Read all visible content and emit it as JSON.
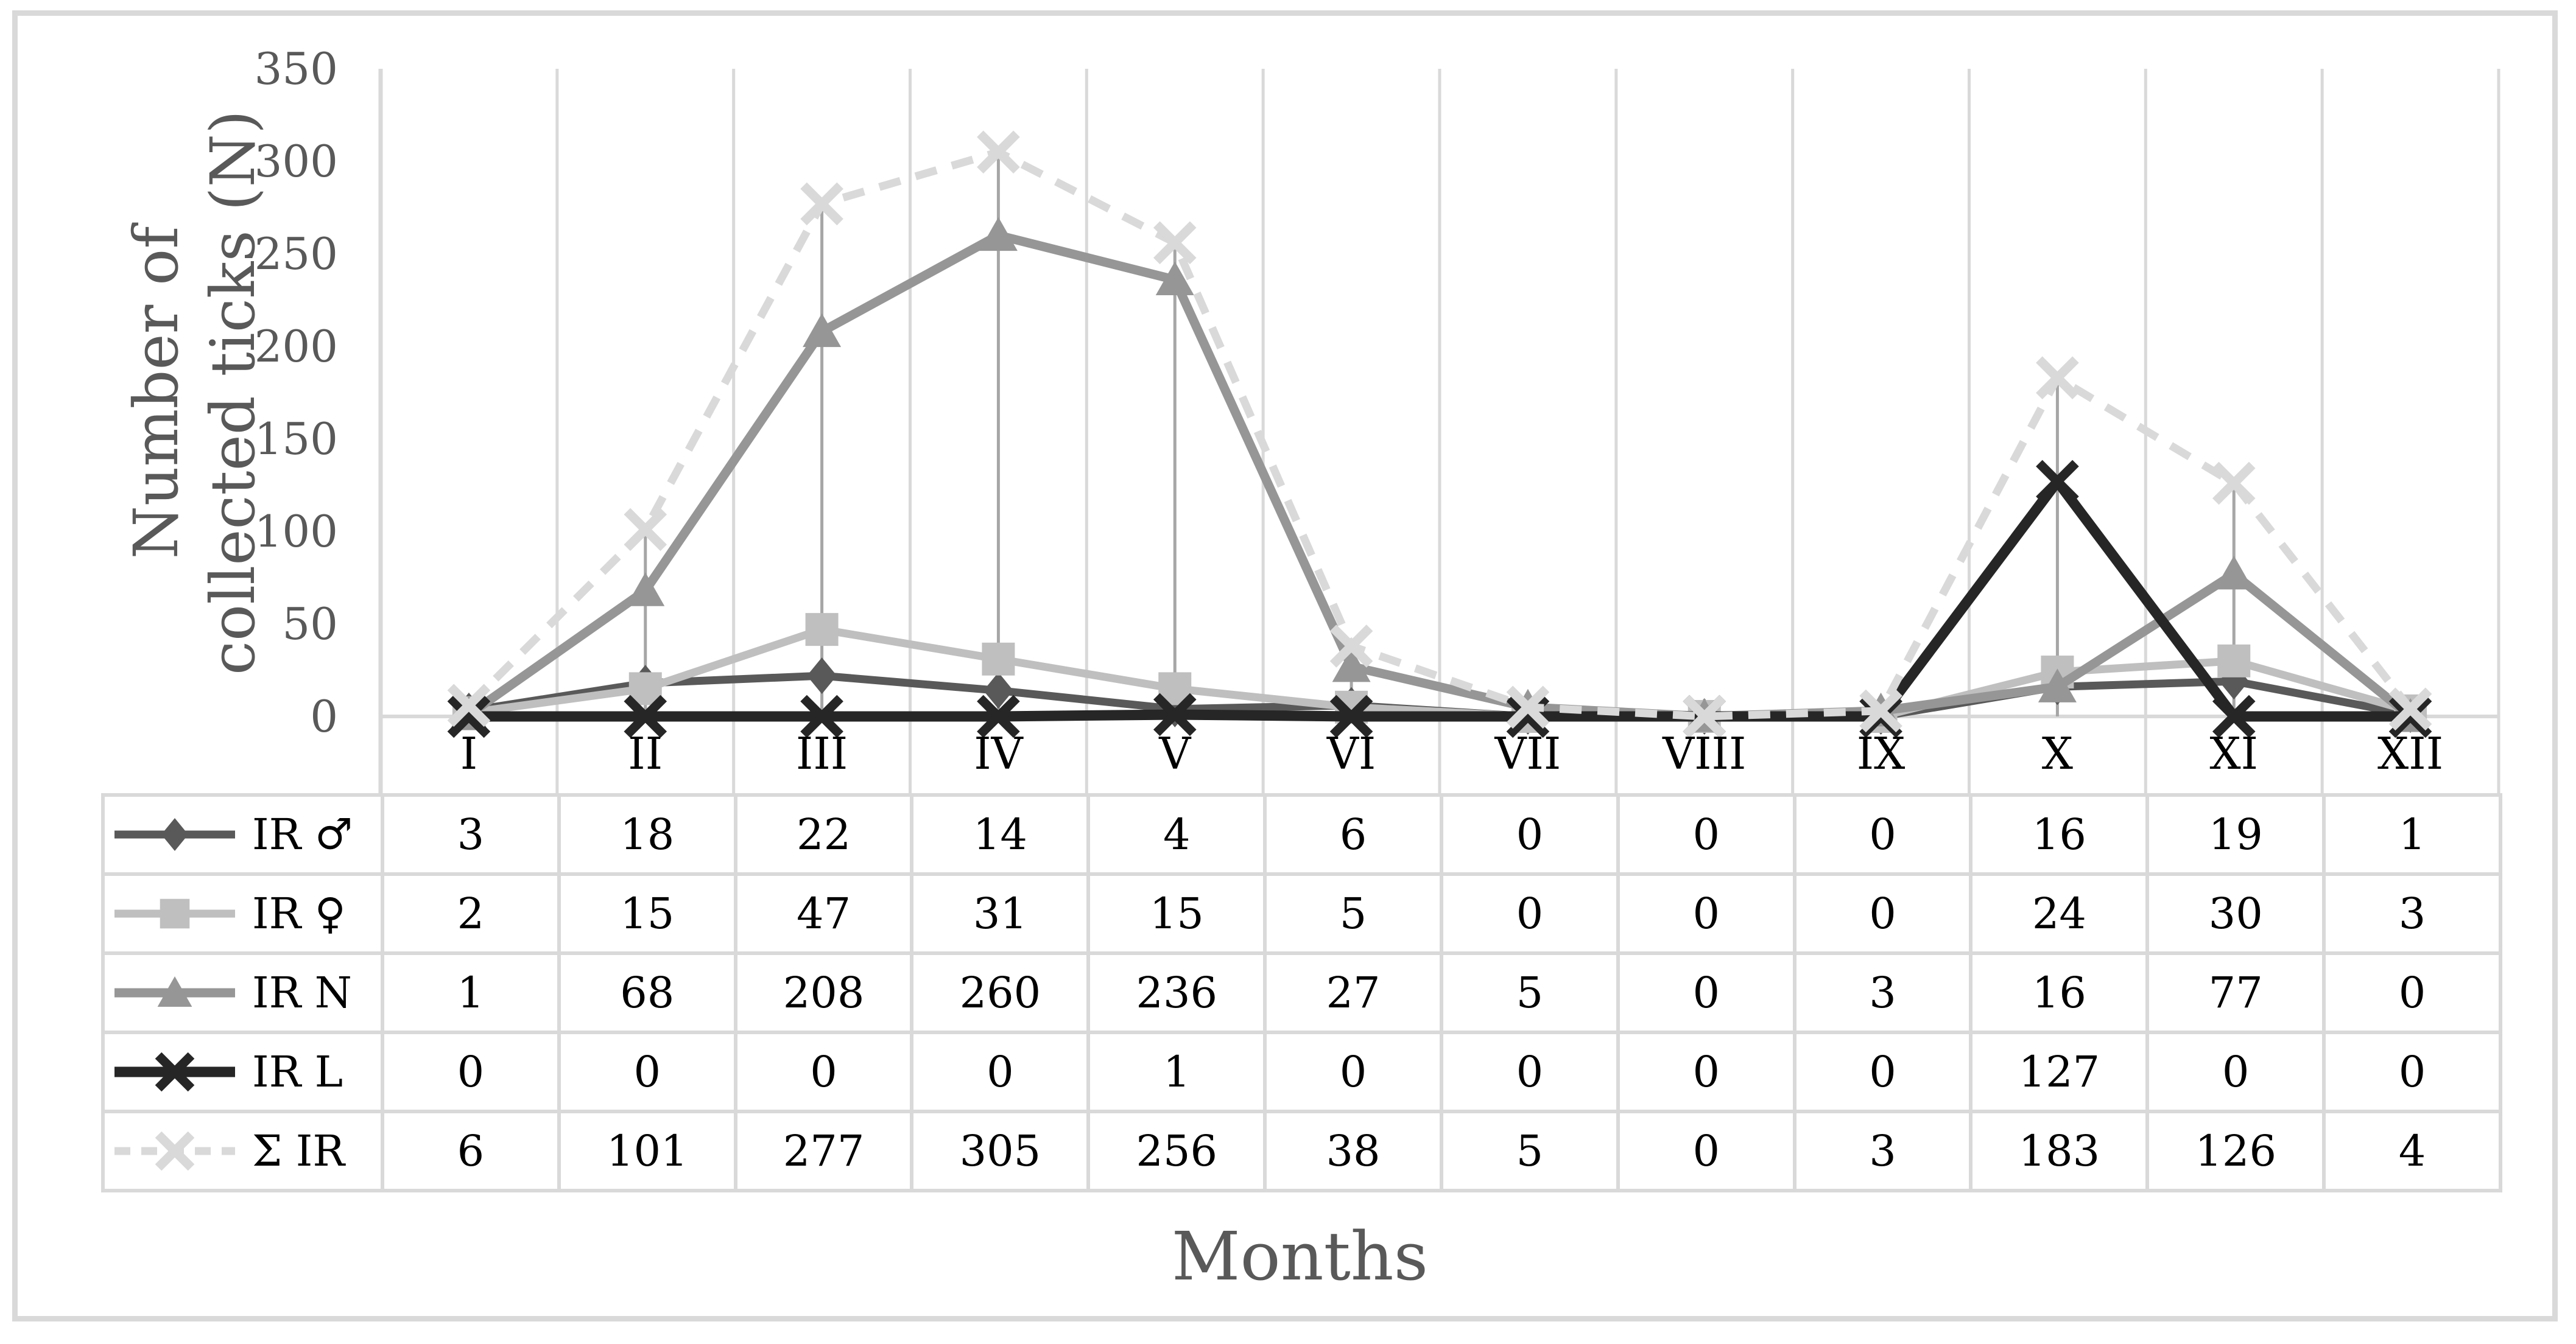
{
  "figure": {
    "background": "#ffffff",
    "border_color": "#d9d9d9"
  },
  "chart_data": {
    "type": "line",
    "title": "",
    "xlabel": "Months",
    "ylabel_lines": [
      "Number of",
      "collected ticks (N)"
    ],
    "categories": [
      "I",
      "II",
      "III",
      "IV",
      "V",
      "VI",
      "VII",
      "VIII",
      "IX",
      "X",
      "XI",
      "XII"
    ],
    "yticks": [
      0,
      50,
      100,
      150,
      200,
      250,
      300,
      350
    ],
    "ylim": [
      0,
      350
    ],
    "grid": "vertical-only",
    "legend_position": "data-table-left-column",
    "series": [
      {
        "name": "IR ♂",
        "marker": "diamond",
        "color": "#595959",
        "dashed": false,
        "line_width": 13,
        "values": [
          3,
          18,
          22,
          14,
          4,
          6,
          0,
          0,
          0,
          16,
          19,
          1
        ]
      },
      {
        "name": "IR ♀",
        "marker": "square",
        "color": "#bfbfbf",
        "dashed": false,
        "line_width": 13,
        "values": [
          2,
          15,
          47,
          31,
          15,
          5,
          0,
          0,
          0,
          24,
          30,
          3
        ]
      },
      {
        "name": "IR N",
        "marker": "triangle",
        "color": "#969696",
        "dashed": false,
        "line_width": 15,
        "values": [
          1,
          68,
          208,
          260,
          236,
          27,
          5,
          0,
          3,
          16,
          77,
          0
        ]
      },
      {
        "name": "IR L",
        "marker": "x",
        "color": "#262626",
        "dashed": false,
        "line_width": 17,
        "values": [
          0,
          0,
          0,
          0,
          1,
          0,
          0,
          0,
          0,
          127,
          0,
          0
        ]
      },
      {
        "name": "Σ IR",
        "marker": "x",
        "color": "#d9d9d9",
        "dashed": true,
        "line_width": 13,
        "values": [
          6,
          101,
          277,
          305,
          256,
          38,
          5,
          0,
          3,
          183,
          126,
          4
        ]
      }
    ],
    "colors": {
      "gridline": "#d9d9d9",
      "axis_line": "#d9d9d9",
      "drop_line": "#a6a6a6",
      "tick_label": "#595959",
      "category_label": "#000000",
      "table_border": "#d9d9d9",
      "table_text": "#000000"
    }
  }
}
